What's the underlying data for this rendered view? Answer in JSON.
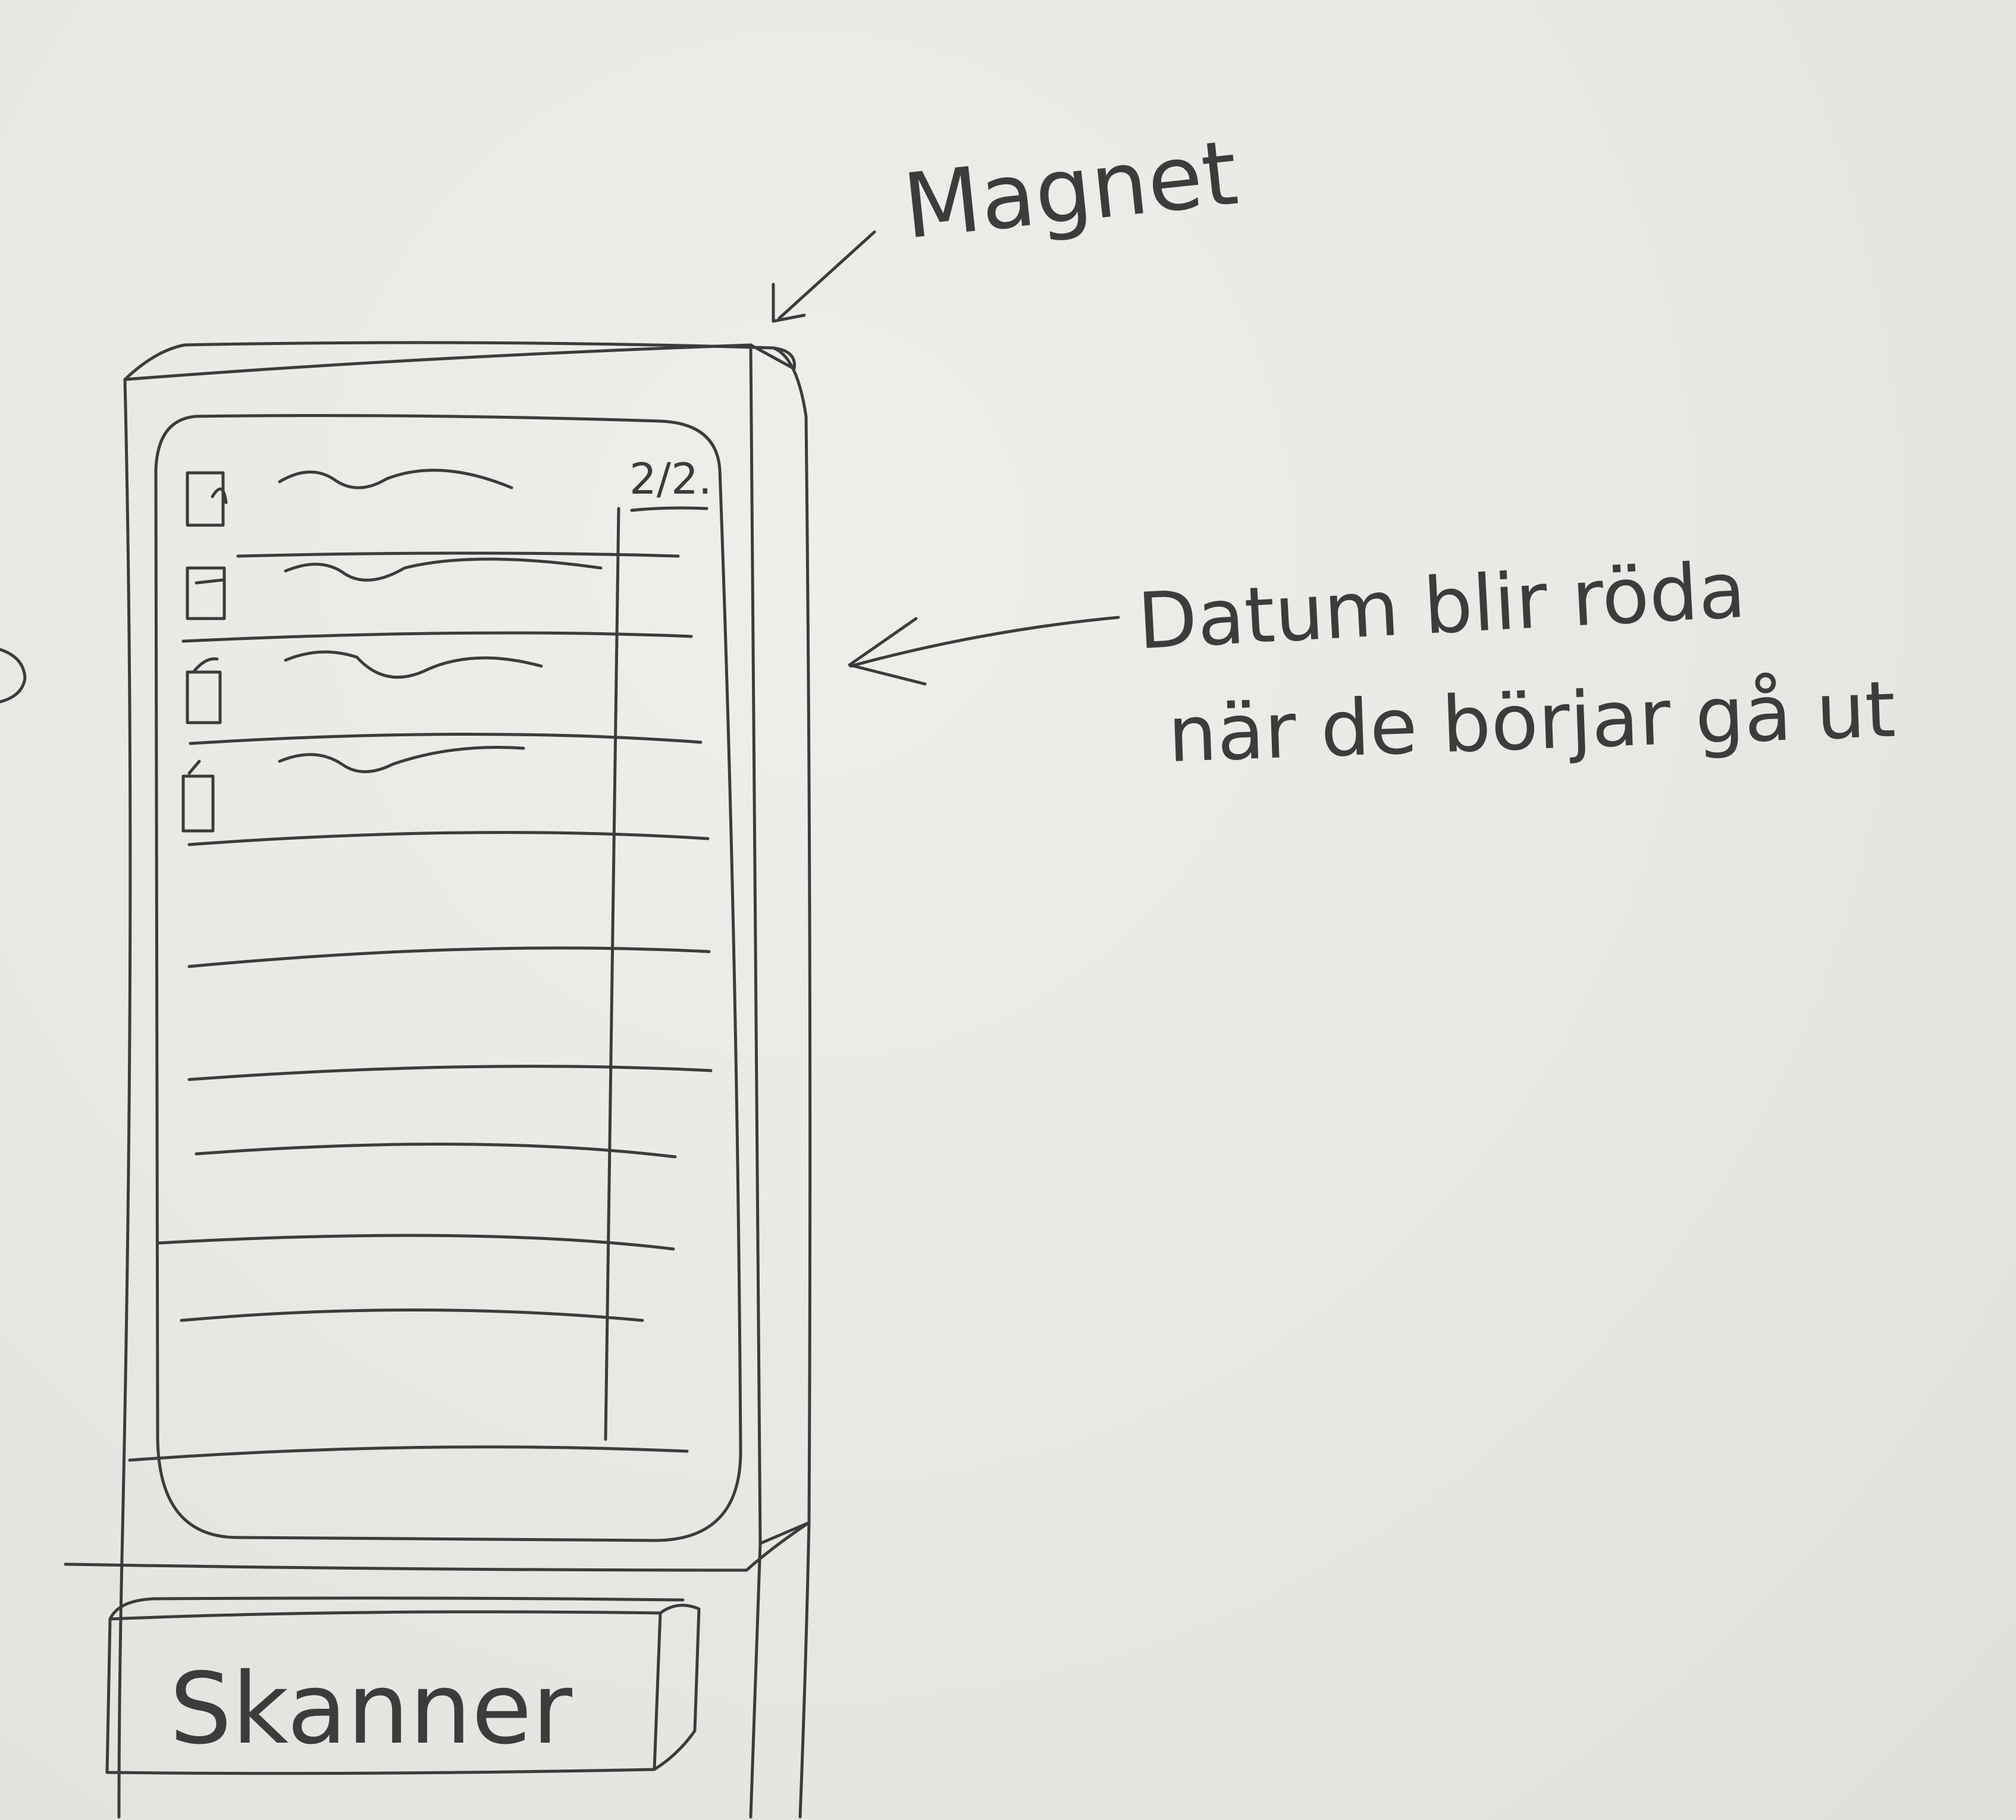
{
  "annotations": {
    "magnet_label": "Magnet",
    "date_note_line1": "Datum blir röda",
    "date_note_line2": "när de börjar gå ut"
  },
  "screen": {
    "date_header": "2/2."
  },
  "scanner": {
    "label": "Skanner"
  },
  "colors": {
    "paper": "#e7e8e4",
    "pencil": "#3c3c3c"
  }
}
